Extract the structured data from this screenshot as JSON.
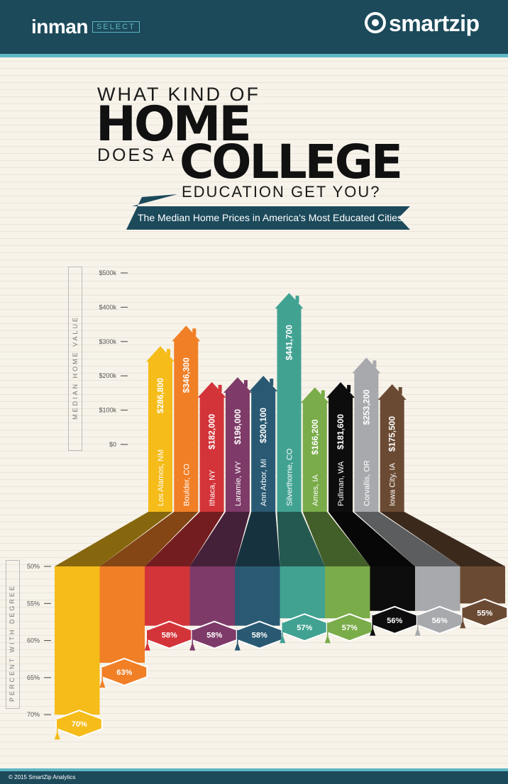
{
  "header": {
    "left_logo": "inman",
    "left_logo_tag": "SELECT",
    "right_logo": "smartzip"
  },
  "title": {
    "line1": "WHAT KIND OF",
    "line2": "HOME",
    "line3": "DOES A",
    "line4": "COLLEGE",
    "line5": "EDUCATION GET YOU?",
    "subtitle": "The Median Home Prices in America's Most Educated Cities"
  },
  "colors": {
    "navy": "#1c4a5b",
    "teal_stripe": "#5fb7c4"
  },
  "footer": {
    "copyright": "© 2015 SmartZip Analytics"
  },
  "chart_data": {
    "type": "bar",
    "title": "WHAT KIND OF HOME DOES A COLLEGE EDUCATION GET YOU?",
    "subtitle": "The Median Home Prices in America's Most Educated Cities",
    "categories": [
      "Los Alamos, NM",
      "Boulder, CO",
      "Ithaca, NY",
      "Laramie, WY",
      "Ann Arbor, MI",
      "Silverthorne, CO",
      "Ames, IA",
      "Pullman, WA",
      "Corvallis, OR",
      "Iowa City, IA"
    ],
    "colors": [
      "#f5bc1a",
      "#f07f26",
      "#d3343a",
      "#7e3a68",
      "#2a5a73",
      "#41a292",
      "#7aac4a",
      "#0d0d0d",
      "#a7a9ac",
      "#6b4a33"
    ],
    "series": [
      {
        "name": "MEDIAN HOME VALUE",
        "values": [
          286800,
          346300,
          182000,
          196000,
          200100,
          441700,
          166200,
          181600,
          253200,
          175500
        ],
        "labels": [
          "$286,800",
          "$346,300",
          "$182,000",
          "$196,000",
          "$200,100",
          "$441,700",
          "$166,200",
          "$181,600",
          "$253,200",
          "$175,500"
        ]
      },
      {
        "name": "PERCENT WITH DEGREE",
        "values": [
          70,
          63,
          58,
          58,
          58,
          57,
          57,
          56,
          56,
          55
        ],
        "labels": [
          "70%",
          "63%",
          "58%",
          "58%",
          "58%",
          "57%",
          "57%",
          "56%",
          "56%",
          "55%"
        ]
      }
    ],
    "y1": {
      "label": "MEDIAN HOME VALUE",
      "ticks": [
        "$0",
        "$100k",
        "$200k",
        "$300k",
        "$400k",
        "$500k"
      ],
      "tick_values": [
        0,
        100000,
        200000,
        300000,
        400000,
        500000
      ],
      "ylim": [
        0,
        500000
      ]
    },
    "y2": {
      "label": "PERCENT WITH DEGREE",
      "ticks": [
        "50%",
        "55%",
        "60%",
        "65%",
        "70%"
      ],
      "tick_values": [
        50,
        55,
        60,
        65,
        70
      ],
      "ylim": [
        50,
        70
      ],
      "inverted": true
    }
  }
}
